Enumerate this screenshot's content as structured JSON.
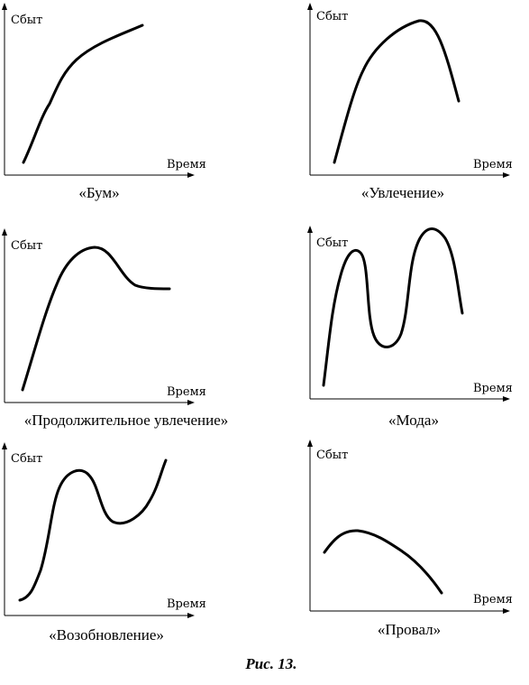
{
  "panels": [
    {
      "id": "boom",
      "ylabel": "Сбыт",
      "xlabel": "Время",
      "title": "«Бум»"
    },
    {
      "id": "fad-enthusiasm",
      "ylabel": "Сбыт",
      "xlabel": "Время",
      "title": "«Увлечение»"
    },
    {
      "id": "long-enthusiasm",
      "ylabel": "Сбыт",
      "xlabel": "Время",
      "title": "«Продолжительное увлечение»"
    },
    {
      "id": "fashion",
      "ylabel": "Сбыт",
      "xlabel": "Время",
      "title": "«Мода»"
    },
    {
      "id": "revival",
      "ylabel": "Сбыт",
      "xlabel": "Время",
      "title": "«Возобновление»"
    },
    {
      "id": "failure",
      "ylabel": "Сбыт",
      "xlabel": "Время",
      "title": "«Провал»"
    }
  ],
  "caption": "Рис. 13."
}
